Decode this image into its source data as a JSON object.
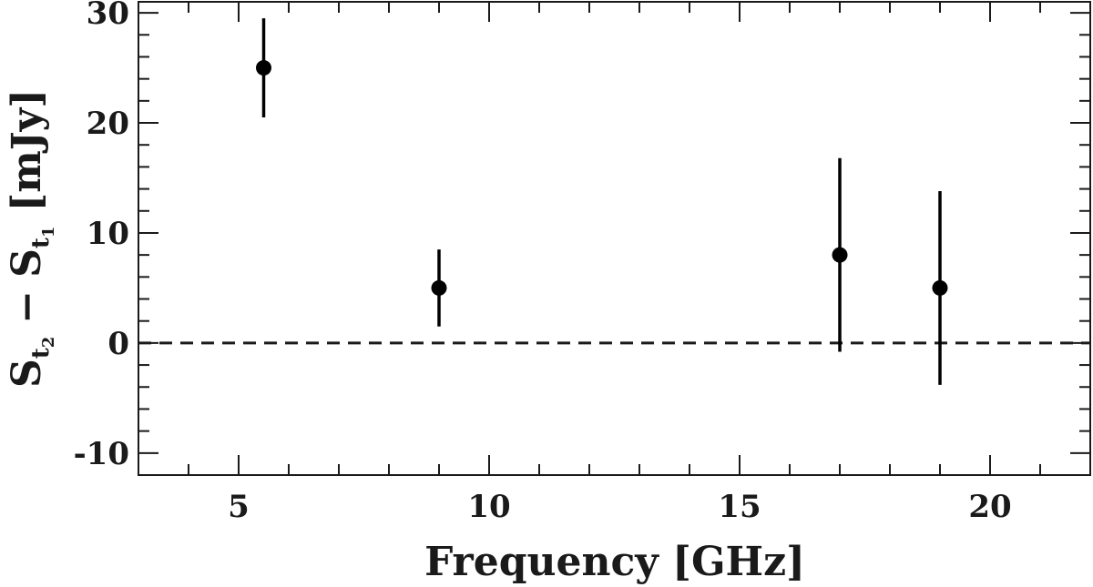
{
  "chart_data": {
    "type": "scatter",
    "title": "",
    "xlabel": "Frequency [GHz]",
    "ylabel": {
      "lead": "S",
      "sub1": "t",
      "sub1_index": "2",
      "minus": "−",
      "lead2": "S",
      "sub2": "t",
      "sub2_index": "1",
      "unit": "[mJy]"
    },
    "xlim": [
      3.0,
      22.0
    ],
    "ylim": [
      -12.0,
      31.0
    ],
    "x_ticks": [
      5,
      10,
      15,
      20
    ],
    "x_tick_labels": [
      "5",
      "10",
      "15",
      "20"
    ],
    "y_ticks": [
      -10,
      0,
      10,
      20,
      30
    ],
    "y_tick_labels": [
      "-10",
      "0",
      "10",
      "20",
      "30"
    ],
    "grid": false,
    "reference_line": {
      "y": 0,
      "style": "dashed"
    },
    "series": [
      {
        "x": [
          5.5,
          9.0,
          17.0,
          19.0
        ],
        "y": [
          25.0,
          5.0,
          8.0,
          5.0
        ],
        "yerr": [
          4.5,
          3.5,
          8.8,
          8.8
        ]
      }
    ]
  },
  "colors": {
    "marker": "#000000",
    "axis": "#1a1a1a"
  }
}
